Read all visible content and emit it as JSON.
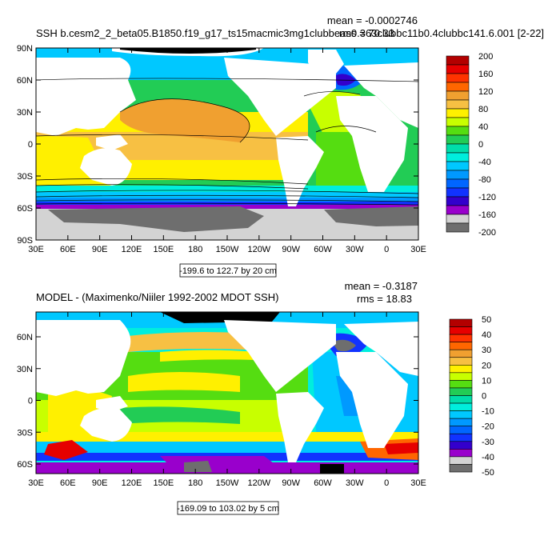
{
  "colors": {
    "land": "#ffffff",
    "ice": "#d3d3d3",
    "dark_ice": "#6e6e6e"
  },
  "panel1": {
    "title": "SSH b.cesm2_2_beta05.B1850.f19_g17_ts15macmic3mg1clubbeas0.363clubbc11b0.4clubbc141.6.001 [2-22]",
    "mean_text": "mean = -0.0002746",
    "rms_text": "rms = 70.33",
    "range_text": "-199.6 to 122.7 by 20 cm",
    "lat_labels": [
      "90N",
      "60N",
      "30N",
      "0",
      "30S",
      "60S",
      "90S"
    ],
    "lon_labels": [
      "30E",
      "60E",
      "90E",
      "120E",
      "150E",
      "180",
      "150W",
      "120W",
      "90W",
      "60W",
      "30W",
      "0",
      "30E"
    ],
    "colorbar": {
      "labels": [
        "200",
        "160",
        "120",
        "80",
        "40",
        "0",
        "-40",
        "-80",
        "-120",
        "-160",
        "-200"
      ],
      "colors": [
        "#b30000",
        "#e60000",
        "#ff3300",
        "#ff6600",
        "#f0a030",
        "#f7c043",
        "#fff000",
        "#c8ff00",
        "#55dd11",
        "#22cc55",
        "#00ddaa",
        "#00eedd",
        "#00c8ff",
        "#0099ff",
        "#0066ff",
        "#1133ff",
        "#3300cc",
        "#9900cc",
        "#d3d3d3",
        "#6e6e6e"
      ]
    }
  },
  "panel2": {
    "title": "MODEL - (Maximenko/Niiler 1992-2002 MDOT SSH)",
    "mean_text": "mean = -0.3187",
    "rms_text": "rms = 18.83",
    "range_text": "-169.09 to 103.02 by 5 cm",
    "lat_labels": [
      "60N",
      "30N",
      "0",
      "30S",
      "60S"
    ],
    "lon_labels": [
      "30E",
      "60E",
      "90E",
      "120E",
      "150E",
      "180",
      "150W",
      "120W",
      "90W",
      "60W",
      "30W",
      "0",
      "30E"
    ],
    "colorbar": {
      "labels": [
        "50",
        "40",
        "30",
        "20",
        "10",
        "0",
        "-10",
        "-20",
        "-30",
        "-40",
        "-50"
      ],
      "colors": [
        "#b30000",
        "#e60000",
        "#ff3300",
        "#ff6600",
        "#f0a030",
        "#f7c043",
        "#fff000",
        "#c8ff00",
        "#55dd11",
        "#22cc55",
        "#00ddaa",
        "#00eedd",
        "#00c8ff",
        "#0099ff",
        "#0066ff",
        "#1133ff",
        "#3300cc",
        "#9900cc",
        "#d3d3d3",
        "#6e6e6e"
      ]
    }
  }
}
